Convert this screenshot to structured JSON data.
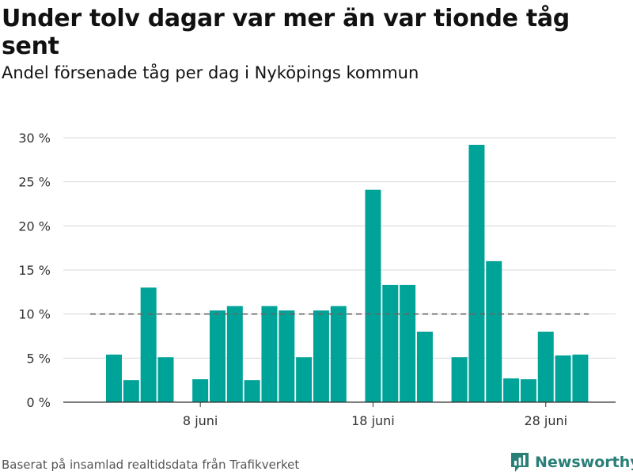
{
  "title": "Under tolv dagar var mer än var tionde tåg sent",
  "subtitle": "Andel försenade tåg per dag i Nyköpings kommun",
  "source": "Baserat på insamlad realtidsdata från Trafikverket",
  "brand": "Newsworthy",
  "colors": {
    "bar": "#00a398",
    "reference_line": "#666666",
    "grid": "#d9d9d9",
    "brand": "#2a7f78"
  },
  "chart_data": {
    "type": "bar",
    "title": "Under tolv dagar var mer än var tionde tåg sent",
    "subtitle": "Andel försenade tåg per dag i Nyköpings kommun",
    "xlabel": "",
    "ylabel": "",
    "ylim": [
      0,
      30
    ],
    "yticks": [
      0,
      5,
      10,
      15,
      20,
      25,
      30
    ],
    "ytick_labels": [
      "0 %",
      "5 %",
      "10 %",
      "15 %",
      "20 %",
      "25 %",
      "30 %"
    ],
    "x_day_range": [
      1,
      30
    ],
    "xticks": [
      {
        "day": 8,
        "label": "8 juni"
      },
      {
        "day": 18,
        "label": "18 juni"
      },
      {
        "day": 28,
        "label": "28 juni"
      }
    ],
    "grid": "horizontal",
    "reference_line": {
      "value": 10,
      "style": "dashed"
    },
    "series": [
      {
        "points": [
          {
            "day": 3,
            "value": 5.4
          },
          {
            "day": 4,
            "value": 2.5
          },
          {
            "day": 5,
            "value": 13.0
          },
          {
            "day": 6,
            "value": 5.1
          },
          {
            "day": 8,
            "value": 2.6
          },
          {
            "day": 9,
            "value": 10.4
          },
          {
            "day": 10,
            "value": 10.9
          },
          {
            "day": 11,
            "value": 2.5
          },
          {
            "day": 12,
            "value": 10.9
          },
          {
            "day": 13,
            "value": 10.4
          },
          {
            "day": 14,
            "value": 5.1
          },
          {
            "day": 15,
            "value": 10.4
          },
          {
            "day": 16,
            "value": 10.9
          },
          {
            "day": 18,
            "value": 24.1
          },
          {
            "day": 19,
            "value": 13.3
          },
          {
            "day": 20,
            "value": 13.3
          },
          {
            "day": 21,
            "value": 8.0
          },
          {
            "day": 23,
            "value": 5.1
          },
          {
            "day": 24,
            "value": 29.2
          },
          {
            "day": 25,
            "value": 16.0
          },
          {
            "day": 26,
            "value": 2.7
          },
          {
            "day": 27,
            "value": 2.6
          },
          {
            "day": 28,
            "value": 8.0
          },
          {
            "day": 29,
            "value": 5.3
          },
          {
            "day": 30,
            "value": 5.4
          }
        ]
      }
    ]
  }
}
